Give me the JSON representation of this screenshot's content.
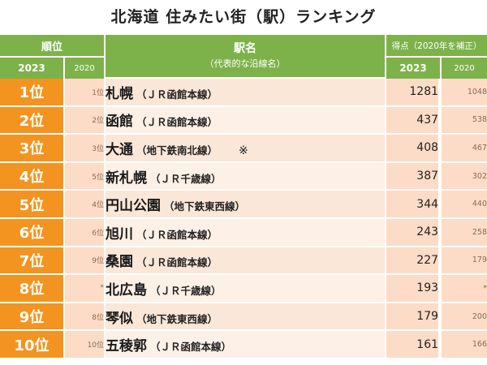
{
  "title": "北海道 住みたい街（駅）ランキング",
  "header": {
    "rank_label": "順位",
    "year_current": "2023",
    "year_prev": "2020",
    "station_label": "駅名",
    "station_sub": "（代表的な沿線名）",
    "score_label": "得点（2020年を補正）",
    "score_year_current": "2023",
    "score_year_prev": "2020"
  },
  "rows": [
    {
      "rank": "1位",
      "prev_rank": "1位",
      "station": "札幌",
      "line": "（ＪＲ函館本線）",
      "note": "",
      "score": "1281",
      "score_prev": "1048"
    },
    {
      "rank": "2位",
      "prev_rank": "2位",
      "station": "函館",
      "line": "（ＪＲ函館本線）",
      "note": "",
      "score": "437",
      "score_prev": "538"
    },
    {
      "rank": "3位",
      "prev_rank": "3位",
      "station": "大通",
      "line": "（地下鉄南北線）",
      "note": "※",
      "score": "408",
      "score_prev": "467"
    },
    {
      "rank": "4位",
      "prev_rank": "5位",
      "station": "新札幌",
      "line": "（ＪＲ千歳線）",
      "note": "",
      "score": "387",
      "score_prev": "302"
    },
    {
      "rank": "5位",
      "prev_rank": "4位",
      "station": "円山公園",
      "line": "（地下鉄東西線）",
      "note": "",
      "score": "344",
      "score_prev": "440"
    },
    {
      "rank": "6位",
      "prev_rank": "6位",
      "station": "旭川",
      "line": "（ＪＲ函館本線）",
      "note": "",
      "score": "243",
      "score_prev": "258"
    },
    {
      "rank": "7位",
      "prev_rank": "9位",
      "station": "桑園",
      "line": "（ＪＲ函館本線）",
      "note": "",
      "score": "227",
      "score_prev": "179"
    },
    {
      "rank": "8位",
      "prev_rank": "*",
      "station": "北広島",
      "line": "（ＪＲ千歳線）",
      "note": "",
      "score": "193",
      "score_prev": "*"
    },
    {
      "rank": "9位",
      "prev_rank": "8位",
      "station": "琴似",
      "line": "（地下鉄東西線）",
      "note": "",
      "score": "179",
      "score_prev": "200"
    },
    {
      "rank": "10位",
      "prev_rank": "10位",
      "station": "五稜郭",
      "line": "（ＪＲ函館本線）",
      "note": "",
      "score": "161",
      "score_prev": "166"
    }
  ],
  "colors": {
    "header_green": "#7db24a",
    "rank_orange": "#f39420",
    "cell_peach": "#fcdcc6",
    "station_bg": "#fdf0e6"
  }
}
